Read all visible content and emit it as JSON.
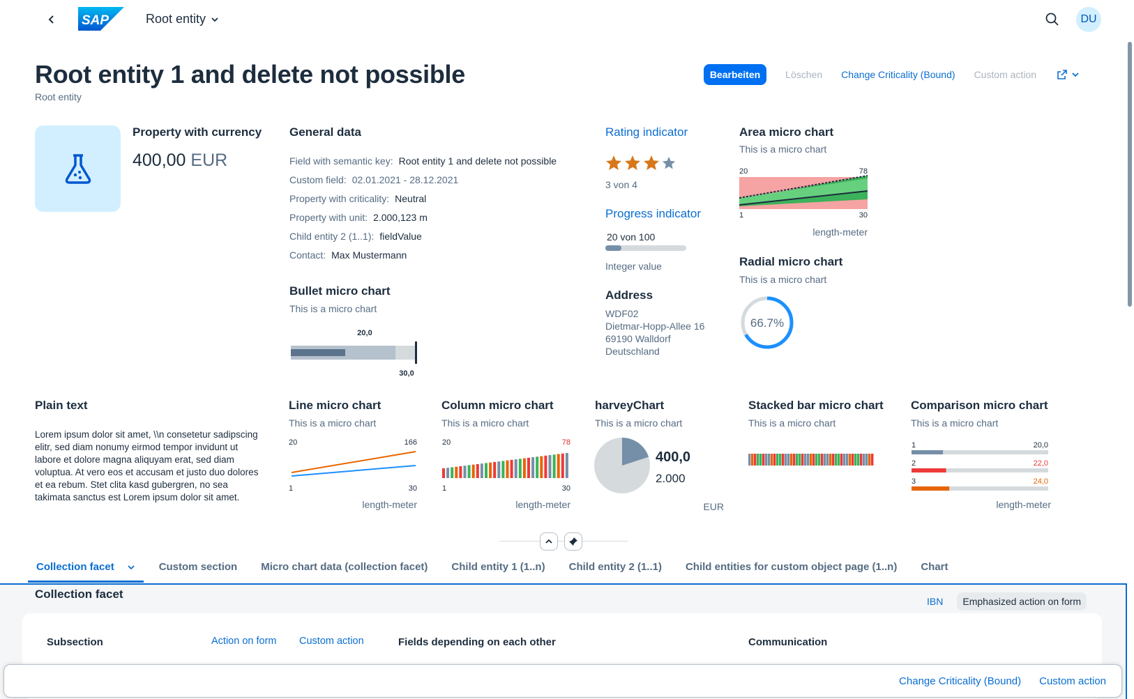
{
  "shell": {
    "title": "Root entity",
    "avatar": "DU",
    "logo": "SAP"
  },
  "header": {
    "title": "Root entity 1 and delete not possible",
    "subtitle": "Root entity",
    "actions": {
      "edit": "Bearbeiten",
      "delete": "Löschen",
      "criticality": "Change Criticality (Bound)",
      "custom": "Custom action"
    }
  },
  "currency": {
    "title": "Property with currency",
    "amount": "400,00",
    "unit": "EUR",
    "icon": "lab-flask-icon"
  },
  "general": {
    "title": "General data",
    "fields": [
      {
        "label": "Field with semantic key:",
        "value": "Root entity 1 and delete not possible",
        "link": false
      },
      {
        "label": "Custom field:",
        "value": "02.01.2021 - 28.12.2021",
        "link": false,
        "muted": true
      },
      {
        "label": "Property with criticality:",
        "value": "Neutral",
        "link": false
      },
      {
        "label": "Property with unit:",
        "value": "2.000,123 m",
        "link": false
      },
      {
        "label": "Child entity 2 (1..1):",
        "value": "fieldValue",
        "link": true
      },
      {
        "label": "Contact:",
        "value": "Max Mustermann",
        "link": true
      }
    ]
  },
  "bullet": {
    "title": "Bullet micro chart",
    "subtitle": "This is a micro chart",
    "value": 20,
    "target": 30,
    "max": 30,
    "value_label": "20,0",
    "target_label": "30,0"
  },
  "rating": {
    "title": "Rating indicator",
    "value": 3,
    "max": 4,
    "text": "3 von 4"
  },
  "progress": {
    "title": "Progress indicator",
    "text": "20 von 100",
    "percent": 20,
    "caption": "Integer value"
  },
  "address": {
    "title": "Address",
    "lines": [
      "WDF02",
      "Dietmar-Hopp-Allee 16",
      "69190 Walldorf",
      "Deutschland"
    ]
  },
  "area": {
    "title": "Area micro chart",
    "subtitle": "This is a micro chart",
    "top_left": "20",
    "top_right": "78",
    "bottom_left": "1",
    "bottom_right": "30",
    "unit": "length-meter"
  },
  "radial": {
    "title": "Radial micro chart",
    "subtitle": "This is a micro chart",
    "percent": 66.7,
    "label": "66.7%"
  },
  "plain": {
    "title": "Plain text",
    "text": "Lorem ipsum dolor sit amet, \\\\n consetetur sadipscing elitr, sed diam nonumy eirmod tempor invidunt ut labore et dolore magna aliquyam erat, sed diam voluptua. At vero eos et accusam et justo duo dolores et ea rebum. Stet clita kasd gubergren, no sea takimata sanctus est Lorem ipsum dolor sit amet."
  },
  "line": {
    "title": "Line micro chart",
    "subtitle": "This is a micro chart",
    "top_left": "20",
    "top_right": "166",
    "bottom_left": "1",
    "bottom_right": "30",
    "unit": "length-meter"
  },
  "column": {
    "title": "Column micro chart",
    "subtitle": "This is a micro chart",
    "top_left": "20",
    "top_right": "78",
    "bottom_left": "1",
    "bottom_right": "30",
    "unit": "length-meter"
  },
  "harvey": {
    "title": "harveyChart",
    "subtitle": "This is a micro chart",
    "value": "400,0",
    "total": "2.000",
    "unit": "EUR",
    "fraction": 0.2
  },
  "stacked": {
    "title": "Stacked bar micro chart",
    "subtitle": "This is a micro chart"
  },
  "comparison": {
    "title": "Comparison micro chart",
    "subtitle": "This is a micro chart",
    "unit": "length-meter",
    "rows": [
      {
        "label": "1",
        "value": "20,0",
        "color": "#768fa8",
        "fraction": 0.2
      },
      {
        "label": "2",
        "value": "22,0",
        "color": "#ee3939",
        "fraction": 0.22
      },
      {
        "label": "3",
        "value": "24,0",
        "color": "#e76500",
        "fraction": 0.24
      }
    ]
  },
  "tabs": [
    "Collection facet",
    "Custom section",
    "Micro chart data (collection facet)",
    "Child entity 1 (1..n)",
    "Child entity 2 (1..1)",
    "Child entities for custom object page (1..n)",
    "Chart"
  ],
  "section": {
    "title": "Collection facet",
    "actions": {
      "ibn": "IBN",
      "emphasized": "Emphasized action on form"
    },
    "subsection": "Subsection",
    "sub_actions": {
      "action": "Action on form",
      "custom": "Custom action"
    },
    "fields_title": "Fields depending on each other",
    "communication": "Communication"
  },
  "footer": {
    "criticality": "Change Criticality (Bound)",
    "custom": "Custom action"
  },
  "colors": {
    "accent": "#0070f2",
    "link": "#0a6ed1",
    "star": "#d8771a"
  }
}
